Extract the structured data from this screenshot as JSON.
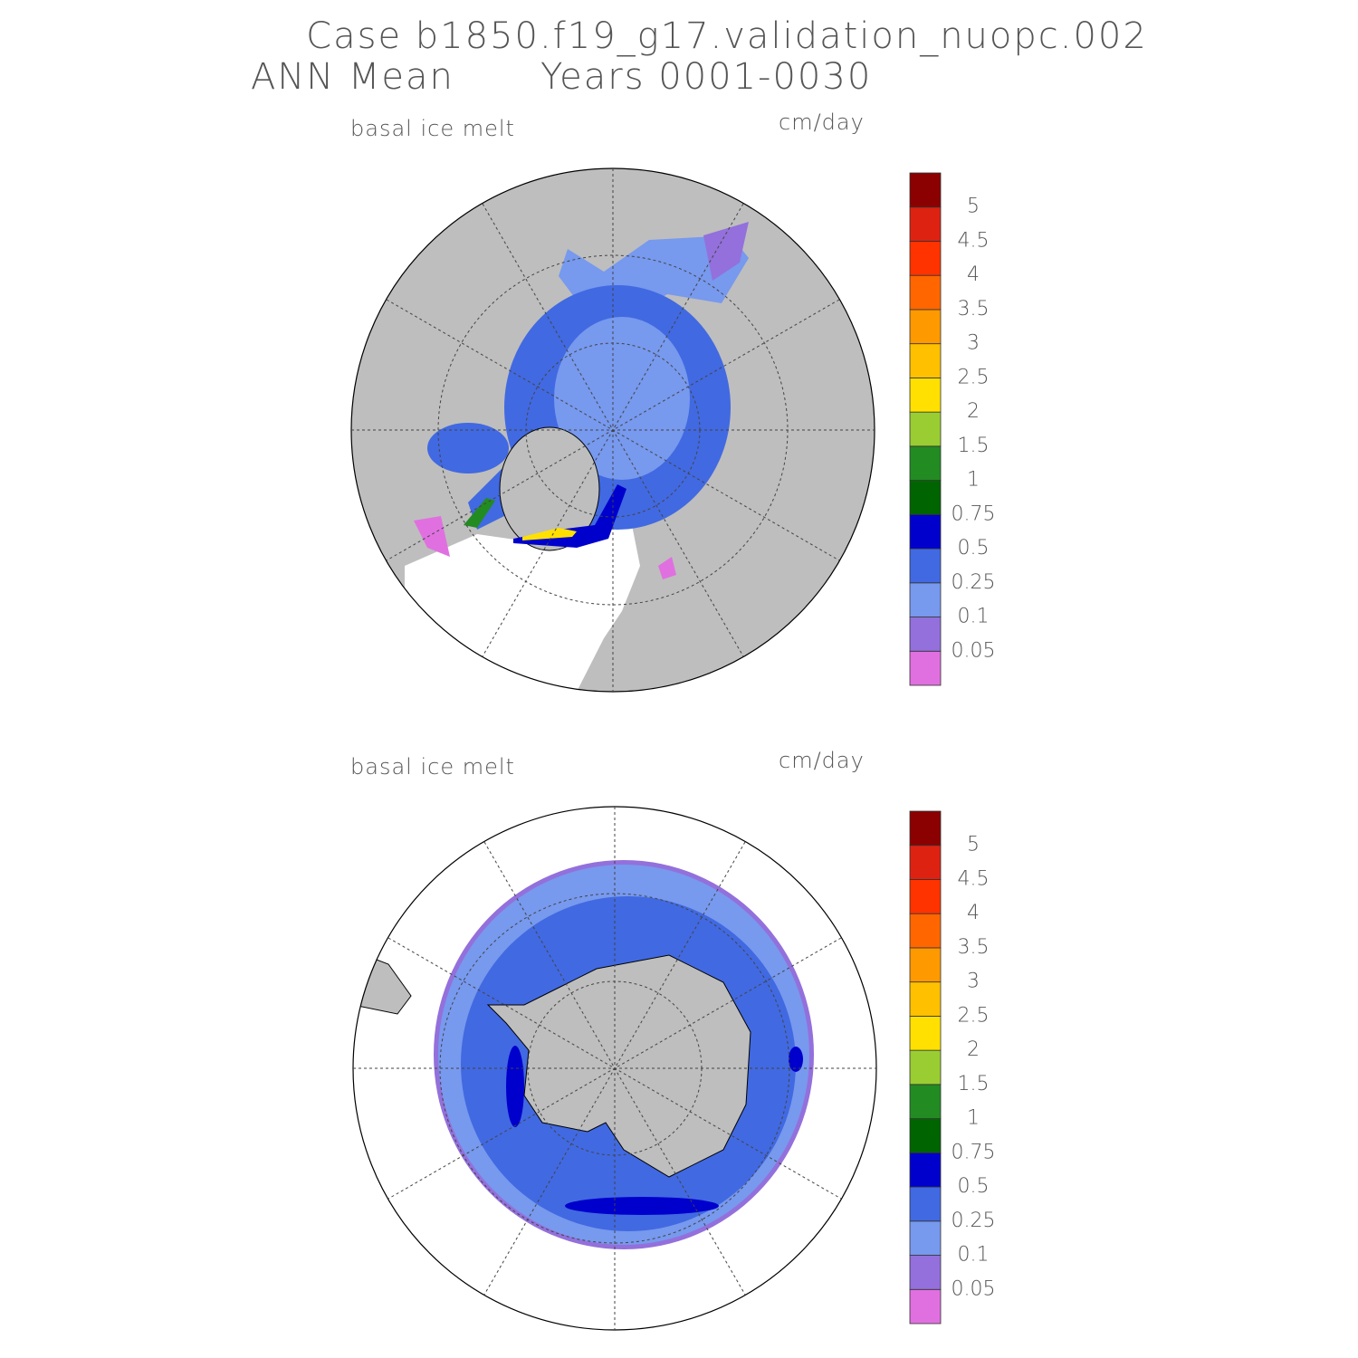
{
  "title": "Case b1850.f19_g17.validation_nuopc.002",
  "subtitle_left": "ANN Mean",
  "subtitle_right": "Years 0001-0030",
  "panels": [
    {
      "label": "basal ice melt",
      "units": "cm/day",
      "colorbar": {
        "levels": [
          0.05,
          0.1,
          0.25,
          0.5,
          0.75,
          1,
          1.5,
          2,
          2.5,
          3,
          3.5,
          4,
          4.5,
          5
        ],
        "colors": [
          "#e070e0",
          "#9370db",
          "#7799ee",
          "#4169e1",
          "#0000cd",
          "#006400",
          "#228b22",
          "#9acd32",
          "#ffe000",
          "#ffc000",
          "#ff9900",
          "#ff6600",
          "#ff3300",
          "#dd2211",
          "#8b0000"
        ]
      }
    },
    {
      "label": "basal ice melt",
      "units": "cm/day",
      "colorbar": {
        "levels": [
          0.05,
          0.1,
          0.25,
          0.5,
          0.75,
          1,
          1.5,
          2,
          2.5,
          3,
          3.5,
          4,
          4.5,
          5
        ],
        "colors": [
          "#e070e0",
          "#9370db",
          "#7799ee",
          "#4169e1",
          "#0000cd",
          "#006400",
          "#228b22",
          "#9acd32",
          "#ffe000",
          "#ffc000",
          "#ff9900",
          "#ff6600",
          "#ff3300",
          "#dd2211",
          "#8b0000"
        ]
      }
    }
  ]
}
